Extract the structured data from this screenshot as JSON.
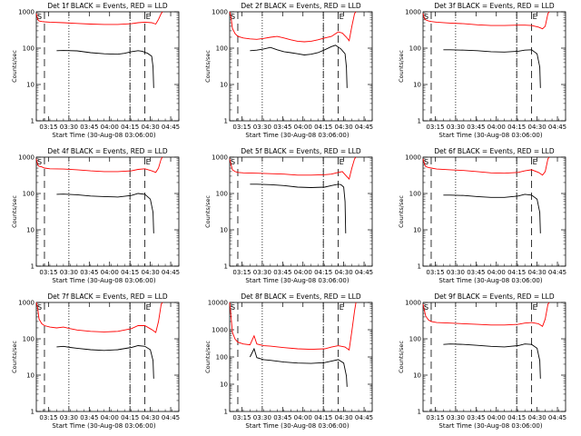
{
  "chart_data": [
    {
      "type": "line",
      "title": "Det 1f BLACK = Events, RED = LLD",
      "xlabel": "Start Time (30-Aug-08 03:06:00)",
      "ylabel": "Counts/sec",
      "yscale": "log",
      "ylim": [
        1,
        1000
      ],
      "xlim_min": [
        0,
        105
      ],
      "xtick_labels": [
        "03:15",
        "03:30",
        "03:45",
        "04:00",
        "04:15",
        "04:30",
        "04:45"
      ],
      "ytick_labels": [
        "1",
        "10",
        "100",
        "1000"
      ],
      "grid": false,
      "markers": {
        "S": "S",
        "E": "E"
      },
      "series": [
        {
          "color": "#ff0000",
          "x": [
            0,
            1,
            2,
            4,
            6,
            10,
            20,
            30,
            40,
            50,
            60,
            70,
            75,
            80,
            85,
            88,
            90,
            92,
            93
          ],
          "y": [
            900,
            620,
            560,
            540,
            530,
            520,
            500,
            480,
            460,
            450,
            450,
            470,
            500,
            520,
            500,
            460,
            620,
            900,
            1000
          ]
        },
        {
          "color": "#000000",
          "x": [
            15,
            20,
            30,
            40,
            50,
            60,
            65,
            70,
            75,
            78,
            82,
            85,
            86,
            86.5
          ],
          "y": [
            85,
            86,
            84,
            75,
            70,
            68,
            72,
            80,
            85,
            82,
            72,
            60,
            30,
            8
          ]
        }
      ]
    },
    {
      "type": "line",
      "title": "Det 2f BLACK = Events, RED = LLD",
      "xlabel": "Start Time (30-Aug-08 03:06:00)",
      "ylabel": "Counts/sec",
      "yscale": "log",
      "ylim": [
        1,
        1000
      ],
      "xlim_min": [
        0,
        105
      ],
      "xtick_labels": [
        "03:15",
        "03:30",
        "03:45",
        "04:00",
        "04:15",
        "04:30",
        "04:45"
      ],
      "ytick_labels": [
        "1",
        "10",
        "100",
        "1000"
      ],
      "grid": false,
      "markers": {
        "S": "S",
        "E": "E"
      },
      "series": [
        {
          "color": "#ff0000",
          "x": [
            0,
            1,
            2,
            4,
            6,
            10,
            15,
            20,
            25,
            30,
            35,
            40,
            45,
            50,
            55,
            60,
            65,
            70,
            75,
            78,
            80,
            83,
            86,
            88,
            90,
            92,
            93
          ],
          "y": [
            1000,
            700,
            350,
            250,
            210,
            190,
            180,
            175,
            185,
            200,
            210,
            190,
            170,
            155,
            150,
            155,
            170,
            190,
            210,
            250,
            280,
            260,
            200,
            160,
            400,
            900,
            1000
          ]
        },
        {
          "color": "#000000",
          "x": [
            15,
            20,
            25,
            30,
            35,
            40,
            45,
            50,
            55,
            60,
            65,
            70,
            75,
            78,
            82,
            85,
            86,
            86.5
          ],
          "y": [
            85,
            88,
            95,
            105,
            90,
            80,
            75,
            70,
            65,
            68,
            75,
            90,
            110,
            120,
            95,
            70,
            30,
            8
          ]
        }
      ]
    },
    {
      "type": "line",
      "title": "Det 3f BLACK = Events, RED = LLD",
      "xlabel": "Start Time (30-Aug-08 03:06:00)",
      "ylabel": "Counts/sec",
      "yscale": "log",
      "ylim": [
        1,
        1000
      ],
      "xlim_min": [
        0,
        105
      ],
      "xtick_labels": [
        "03:15",
        "03:30",
        "03:45",
        "04:00",
        "04:15",
        "04:30",
        "04:45"
      ],
      "ytick_labels": [
        "1",
        "10",
        "100",
        "1000"
      ],
      "grid": false,
      "markers": {
        "S": "S",
        "E": "E"
      },
      "series": [
        {
          "color": "#ff0000",
          "x": [
            0,
            1,
            2,
            4,
            6,
            10,
            20,
            30,
            40,
            50,
            60,
            70,
            75,
            80,
            85,
            88,
            90,
            92,
            93
          ],
          "y": [
            900,
            650,
            600,
            560,
            540,
            520,
            490,
            470,
            440,
            420,
            420,
            430,
            430,
            420,
            380,
            340,
            400,
            900,
            1000
          ]
        },
        {
          "color": "#000000",
          "x": [
            15,
            20,
            30,
            40,
            50,
            60,
            70,
            75,
            80,
            84,
            86,
            86.5
          ],
          "y": [
            90,
            90,
            88,
            85,
            80,
            78,
            82,
            88,
            90,
            70,
            30,
            8
          ]
        }
      ]
    },
    {
      "type": "line",
      "title": "Det 4f BLACK = Events, RED = LLD",
      "xlabel": "Start Time (30-Aug-08 03:06:00)",
      "ylabel": "Counts/sec",
      "yscale": "log",
      "ylim": [
        1,
        1000
      ],
      "xlim_min": [
        0,
        105
      ],
      "xtick_labels": [
        "03:15",
        "03:30",
        "03:45",
        "04:00",
        "04:15",
        "04:30",
        "04:45"
      ],
      "ytick_labels": [
        "1",
        "10",
        "100",
        "1000"
      ],
      "grid": false,
      "markers": {
        "S": "S",
        "E": "E"
      },
      "series": [
        {
          "color": "#ff0000",
          "x": [
            0,
            1,
            2,
            4,
            6,
            10,
            20,
            30,
            40,
            50,
            60,
            70,
            75,
            80,
            85,
            88,
            90,
            92,
            93
          ],
          "y": [
            900,
            620,
            560,
            540,
            500,
            480,
            470,
            450,
            420,
            400,
            400,
            420,
            460,
            480,
            420,
            380,
            500,
            900,
            1000
          ]
        },
        {
          "color": "#000000",
          "x": [
            15,
            20,
            30,
            40,
            50,
            60,
            70,
            75,
            80,
            84,
            86,
            86.5
          ],
          "y": [
            95,
            96,
            92,
            85,
            82,
            80,
            88,
            100,
            95,
            70,
            30,
            8
          ]
        }
      ]
    },
    {
      "type": "line",
      "title": "Det 5f BLACK = Events, RED = LLD",
      "xlabel": "Start Time (30-Aug-08 03:06:00)",
      "ylabel": "Counts/sec",
      "yscale": "log",
      "ylim": [
        1,
        1000
      ],
      "xlim_min": [
        0,
        105
      ],
      "xtick_labels": [
        "03:15",
        "03:30",
        "03:45",
        "04:00",
        "04:15",
        "04:30",
        "04:45"
      ],
      "ytick_labels": [
        "1",
        "10",
        "100",
        "1000"
      ],
      "grid": false,
      "markers": {
        "S": "S",
        "E": "E"
      },
      "series": [
        {
          "color": "#ff0000",
          "x": [
            0,
            1,
            2,
            4,
            6,
            10,
            20,
            30,
            40,
            50,
            60,
            70,
            75,
            80,
            83,
            86,
            88,
            90,
            92,
            93
          ],
          "y": [
            900,
            620,
            450,
            400,
            380,
            370,
            360,
            350,
            340,
            320,
            320,
            330,
            340,
            380,
            400,
            300,
            250,
            500,
            900,
            1000
          ]
        },
        {
          "color": "#000000",
          "x": [
            15,
            20,
            30,
            40,
            50,
            60,
            70,
            75,
            80,
            82,
            84,
            85,
            85.5
          ],
          "y": [
            180,
            180,
            175,
            165,
            150,
            145,
            150,
            165,
            180,
            175,
            150,
            60,
            8
          ]
        }
      ]
    },
    {
      "type": "line",
      "title": "Det 6f BLACK = Events, RED = LLD",
      "xlabel": "Start Time (30-Aug-08 03:06:00)",
      "ylabel": "Counts/sec",
      "yscale": "log",
      "ylim": [
        1,
        1000
      ],
      "xlim_min": [
        0,
        105
      ],
      "xtick_labels": [
        "03:15",
        "03:30",
        "03:45",
        "04:00",
        "04:15",
        "04:30",
        "04:45"
      ],
      "ytick_labels": [
        "1",
        "10",
        "100",
        "1000"
      ],
      "grid": false,
      "markers": {
        "S": "S",
        "E": "E"
      },
      "series": [
        {
          "color": "#ff0000",
          "x": [
            0,
            1,
            2,
            4,
            6,
            10,
            20,
            30,
            40,
            50,
            60,
            70,
            75,
            80,
            85,
            88,
            90,
            92,
            93
          ],
          "y": [
            900,
            650,
            550,
            520,
            500,
            470,
            450,
            430,
            400,
            370,
            360,
            380,
            420,
            450,
            380,
            320,
            400,
            900,
            1000
          ]
        },
        {
          "color": "#000000",
          "x": [
            15,
            20,
            30,
            40,
            50,
            60,
            70,
            75,
            80,
            84,
            86,
            86.5
          ],
          "y": [
            90,
            90,
            88,
            82,
            78,
            78,
            85,
            95,
            90,
            70,
            30,
            8
          ]
        }
      ]
    },
    {
      "type": "line",
      "title": "Det 7f BLACK = Events, RED = LLD",
      "xlabel": "Start Time (30-Aug-08 03:06:00)",
      "ylabel": "Counts/sec",
      "yscale": "log",
      "ylim": [
        1,
        1000
      ],
      "xlim_min": [
        0,
        105
      ],
      "xtick_labels": [
        "03:15",
        "03:30",
        "03:45",
        "04:00",
        "04:15",
        "04:30",
        "04:45"
      ],
      "ytick_labels": [
        "1",
        "10",
        "100",
        "1000"
      ],
      "grid": false,
      "markers": {
        "S": "S",
        "E": "E"
      },
      "series": [
        {
          "color": "#ff0000",
          "x": [
            0,
            1,
            2,
            4,
            6,
            10,
            15,
            20,
            25,
            30,
            40,
            50,
            60,
            70,
            75,
            80,
            85,
            88,
            90,
            92,
            93
          ],
          "y": [
            1000,
            700,
            350,
            260,
            230,
            210,
            200,
            210,
            190,
            175,
            160,
            155,
            160,
            190,
            230,
            230,
            180,
            150,
            300,
            900,
            1000
          ]
        },
        {
          "color": "#000000",
          "x": [
            15,
            20,
            25,
            30,
            40,
            50,
            60,
            70,
            75,
            80,
            84,
            86,
            86.5
          ],
          "y": [
            60,
            62,
            58,
            55,
            50,
            48,
            50,
            58,
            65,
            62,
            50,
            25,
            8
          ]
        }
      ]
    },
    {
      "type": "line",
      "title": "Det 8f BLACK = Events, RED = LLD",
      "xlabel": "Start Time (30-Aug-08 03:06:00)",
      "ylabel": "Counts/sec",
      "yscale": "log",
      "ylim": [
        1,
        10000
      ],
      "xlim_min": [
        0,
        105
      ],
      "xtick_labels": [
        "03:15",
        "03:30",
        "03:45",
        "04:00",
        "04:15",
        "04:30",
        "04:45"
      ],
      "ytick_labels": [
        "1",
        "10",
        "100",
        "1000",
        "10000"
      ],
      "grid": false,
      "markers": {
        "S": "S",
        "E": "E"
      },
      "series": [
        {
          "color": "#ff0000",
          "x": [
            0,
            1,
            2,
            4,
            6,
            10,
            15,
            18,
            20,
            25,
            30,
            40,
            50,
            60,
            70,
            75,
            80,
            85,
            88,
            90,
            92,
            93
          ],
          "y": [
            10000,
            3000,
            800,
            450,
            350,
            300,
            280,
            600,
            300,
            260,
            250,
            220,
            200,
            190,
            200,
            230,
            260,
            230,
            180,
            900,
            5000,
            10000
          ]
        },
        {
          "color": "#000000",
          "x": [
            15,
            18,
            20,
            25,
            30,
            40,
            50,
            60,
            70,
            75,
            80,
            84,
            86,
            86.5
          ],
          "y": [
            100,
            200,
            95,
            80,
            75,
            65,
            60,
            58,
            62,
            70,
            80,
            60,
            20,
            8
          ]
        }
      ]
    },
    {
      "type": "line",
      "title": "Det 9f BLACK = Events, RED = LLD",
      "xlabel": "Start Time (30-Aug-08 03:06:00)",
      "ylabel": "Counts/sec",
      "yscale": "log",
      "ylim": [
        1,
        1000
      ],
      "xlim_min": [
        0,
        105
      ],
      "xtick_labels": [
        "03:15",
        "03:30",
        "03:45",
        "04:00",
        "04:15",
        "04:30",
        "04:45"
      ],
      "ytick_labels": [
        "1",
        "10",
        "100",
        "1000"
      ],
      "grid": false,
      "markers": {
        "S": "S",
        "E": "E"
      },
      "series": [
        {
          "color": "#ff0000",
          "x": [
            0,
            1,
            2,
            4,
            6,
            10,
            20,
            30,
            40,
            50,
            60,
            70,
            75,
            80,
            85,
            88,
            90,
            92,
            93
          ],
          "y": [
            900,
            600,
            420,
            330,
            300,
            280,
            270,
            260,
            250,
            240,
            240,
            250,
            270,
            280,
            260,
            220,
            350,
            900,
            1000
          ]
        },
        {
          "color": "#000000",
          "x": [
            15,
            20,
            30,
            40,
            50,
            60,
            70,
            75,
            80,
            84,
            86,
            86.5
          ],
          "y": [
            70,
            72,
            70,
            66,
            62,
            60,
            65,
            72,
            70,
            55,
            25,
            8
          ]
        }
      ]
    }
  ]
}
